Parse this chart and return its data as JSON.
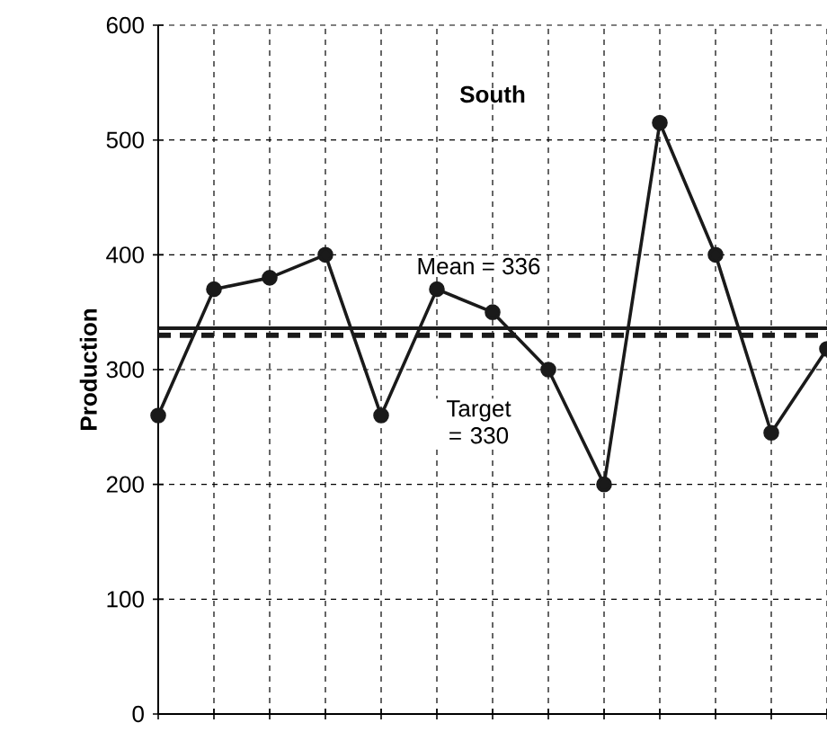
{
  "chart_data": {
    "type": "line",
    "title": "South",
    "ylabel": "Production",
    "categories": [
      null,
      null,
      null,
      null,
      null,
      null,
      null,
      null,
      null,
      null,
      null,
      null,
      null
    ],
    "series": [
      {
        "color": "#1a1a1a",
        "values": [
          260,
          370,
          380,
          400,
          260,
          370,
          350,
          300,
          200,
          515,
          400,
          245,
          318
        ]
      }
    ],
    "ylim": [
      0,
      600
    ],
    "yticks": [
      0,
      100,
      200,
      300,
      400,
      500,
      600
    ],
    "grid": true,
    "marker": "circle",
    "line_style": "solid",
    "ref_lines": [
      {
        "axis": "y",
        "value": 336,
        "label": "Mean = 336",
        "color": "#1a1a1a",
        "line_style": "solid"
      },
      {
        "axis": "y",
        "value": 330,
        "label": "Target = 330",
        "color": "#1a1a1a",
        "line_style": "dashed"
      }
    ]
  }
}
